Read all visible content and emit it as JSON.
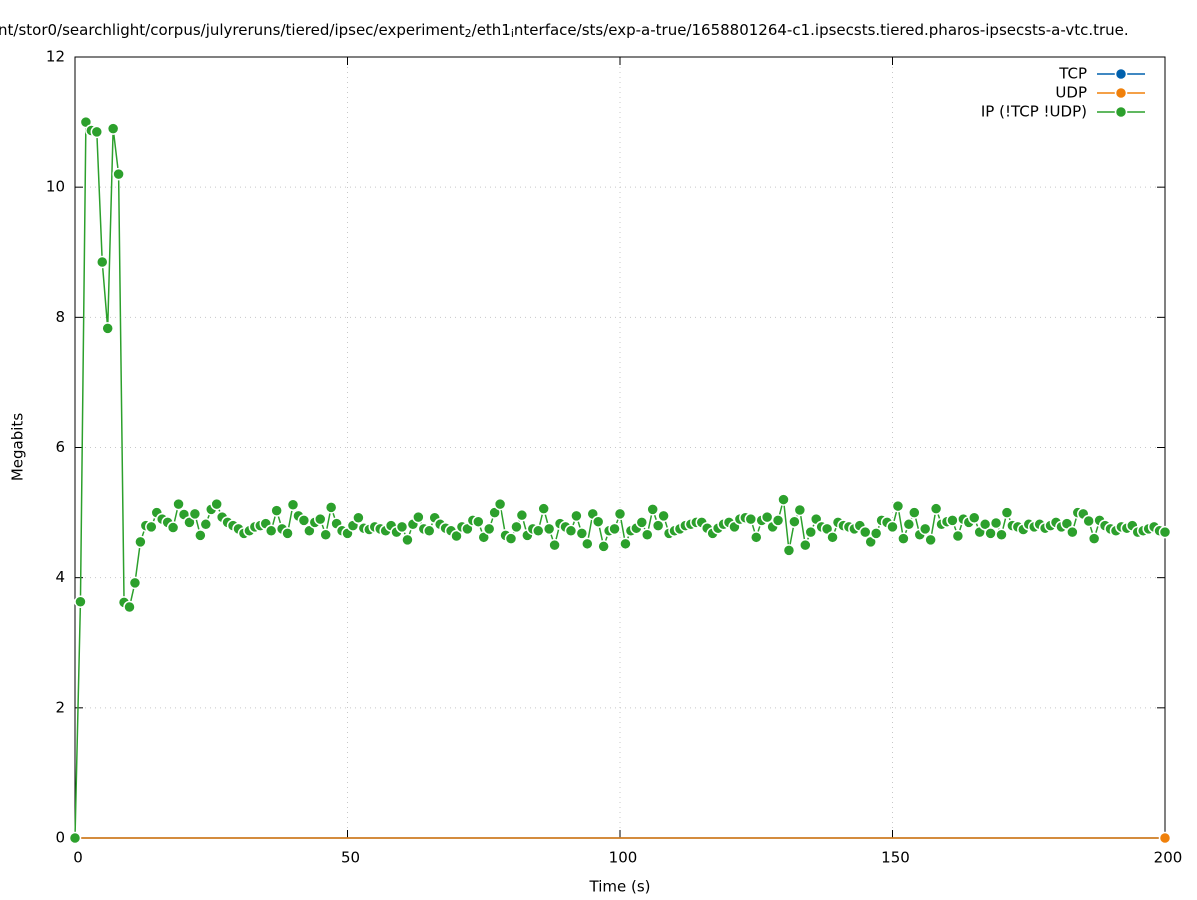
{
  "chart_data": {
    "type": "line",
    "title": [
      "nt/stor0/searchlight/corpus/julyreruns/tiered/ipsec/experiment",
      "2",
      "/eth1",
      "i",
      "nterface/sts/exp-a-true/1658801264-c1.ipsecsts.tiered.pharos-ipsecsts-a-vtc.true."
    ],
    "xlabel": "Time (s)",
    "ylabel": "Megabits",
    "xlim": [
      0,
      200
    ],
    "xticks": [
      0,
      50,
      100,
      150,
      200
    ],
    "ylim": [
      0,
      12
    ],
    "yticks": [
      0,
      2,
      4,
      6,
      8,
      10,
      12
    ],
    "grid": true,
    "legend": "top-right",
    "x": [
      0,
      1,
      2,
      3,
      4,
      5,
      6,
      7,
      8,
      9,
      10,
      11,
      12,
      13,
      14,
      15,
      16,
      17,
      18,
      19,
      20,
      21,
      22,
      23,
      24,
      25,
      26,
      27,
      28,
      29,
      30,
      31,
      32,
      33,
      34,
      35,
      36,
      37,
      38,
      39,
      40,
      41,
      42,
      43,
      44,
      45,
      46,
      47,
      48,
      49,
      50,
      51,
      52,
      53,
      54,
      55,
      56,
      57,
      58,
      59,
      60,
      61,
      62,
      63,
      64,
      65,
      66,
      67,
      68,
      69,
      70,
      71,
      72,
      73,
      74,
      75,
      76,
      77,
      78,
      79,
      80,
      81,
      82,
      83,
      84,
      85,
      86,
      87,
      88,
      89,
      90,
      91,
      92,
      93,
      94,
      95,
      96,
      97,
      98,
      99,
      100,
      101,
      102,
      103,
      104,
      105,
      106,
      107,
      108,
      109,
      110,
      111,
      112,
      113,
      114,
      115,
      116,
      117,
      118,
      119,
      120,
      121,
      122,
      123,
      124,
      125,
      126,
      127,
      128,
      129,
      130,
      131,
      132,
      133,
      134,
      135,
      136,
      137,
      138,
      139,
      140,
      141,
      142,
      143,
      144,
      145,
      146,
      147,
      148,
      149,
      150,
      151,
      152,
      153,
      154,
      155,
      156,
      157,
      158,
      159,
      160,
      161,
      162,
      163,
      164,
      165,
      166,
      167,
      168,
      169,
      170,
      171,
      172,
      173,
      174,
      175,
      176,
      177,
      178,
      179,
      180,
      181,
      182,
      183,
      184,
      185,
      186,
      187,
      188,
      189,
      190,
      191,
      192,
      193,
      194,
      195,
      196,
      197,
      198,
      199,
      200
    ],
    "series": [
      {
        "name": "TCP",
        "color": "#0060ad",
        "values": [
          0,
          0,
          0,
          0,
          0,
          0,
          0,
          0,
          0,
          0,
          0,
          0,
          0,
          0,
          0,
          0,
          0,
          0,
          0,
          0,
          0,
          0,
          0,
          0,
          0,
          0,
          0,
          0,
          0,
          0,
          0,
          0,
          0,
          0,
          0,
          0,
          0,
          0,
          0,
          0,
          0,
          0,
          0,
          0,
          0,
          0,
          0,
          0,
          0,
          0,
          0,
          0,
          0,
          0,
          0,
          0,
          0,
          0,
          0,
          0,
          0,
          0,
          0,
          0,
          0,
          0,
          0,
          0,
          0,
          0,
          0,
          0,
          0,
          0,
          0,
          0,
          0,
          0,
          0,
          0,
          0,
          0,
          0,
          0,
          0,
          0,
          0,
          0,
          0,
          0,
          0,
          0,
          0,
          0,
          0,
          0,
          0,
          0,
          0,
          0,
          0,
          0,
          0,
          0,
          0,
          0,
          0,
          0,
          0,
          0,
          0,
          0,
          0,
          0,
          0,
          0,
          0,
          0,
          0,
          0,
          0,
          0,
          0,
          0,
          0,
          0,
          0,
          0,
          0,
          0,
          0,
          0,
          0,
          0,
          0,
          0,
          0,
          0,
          0,
          0,
          0,
          0,
          0,
          0,
          0,
          0,
          0,
          0,
          0,
          0,
          0,
          0,
          0,
          0,
          0,
          0,
          0,
          0,
          0,
          0,
          0,
          0,
          0,
          0,
          0,
          0,
          0,
          0,
          0,
          0,
          0,
          0,
          0,
          0,
          0,
          0,
          0,
          0,
          0,
          0,
          0,
          0,
          0,
          0,
          0,
          0,
          0,
          0,
          0,
          0,
          0,
          0,
          0,
          0,
          0,
          0,
          0,
          0,
          0,
          0,
          0
        ]
      },
      {
        "name": "UDP",
        "color": "#f0800a",
        "values": [
          0,
          0,
          0,
          0,
          0,
          0,
          0,
          0,
          0,
          0,
          0,
          0,
          0,
          0,
          0,
          0,
          0,
          0,
          0,
          0,
          0,
          0,
          0,
          0,
          0,
          0,
          0,
          0,
          0,
          0,
          0,
          0,
          0,
          0,
          0,
          0,
          0,
          0,
          0,
          0,
          0,
          0,
          0,
          0,
          0,
          0,
          0,
          0,
          0,
          0,
          0,
          0,
          0,
          0,
          0,
          0,
          0,
          0,
          0,
          0,
          0,
          0,
          0,
          0,
          0,
          0,
          0,
          0,
          0,
          0,
          0,
          0,
          0,
          0,
          0,
          0,
          0,
          0,
          0,
          0,
          0,
          0,
          0,
          0,
          0,
          0,
          0,
          0,
          0,
          0,
          0,
          0,
          0,
          0,
          0,
          0,
          0,
          0,
          0,
          0,
          0,
          0,
          0,
          0,
          0,
          0,
          0,
          0,
          0,
          0,
          0,
          0,
          0,
          0,
          0,
          0,
          0,
          0,
          0,
          0,
          0,
          0,
          0,
          0,
          0,
          0,
          0,
          0,
          0,
          0,
          0,
          0,
          0,
          0,
          0,
          0,
          0,
          0,
          0,
          0,
          0,
          0,
          0,
          0,
          0,
          0,
          0,
          0,
          0,
          0,
          0,
          0,
          0,
          0,
          0,
          0,
          0,
          0,
          0,
          0,
          0,
          0,
          0,
          0,
          0,
          0,
          0,
          0,
          0,
          0,
          0,
          0,
          0,
          0,
          0,
          0,
          0,
          0,
          0,
          0,
          0,
          0,
          0,
          0,
          0,
          0,
          0,
          0,
          0,
          0,
          0,
          0,
          0,
          0,
          0,
          0,
          0,
          0,
          0,
          0,
          0
        ]
      },
      {
        "name": "IP (!TCP  !UDP)",
        "color": "#2ca02c",
        "values": [
          0,
          3.63,
          11.0,
          10.87,
          10.85,
          8.85,
          7.83,
          10.9,
          10.2,
          3.62,
          3.55,
          3.92,
          4.55,
          4.8,
          4.78,
          5.0,
          4.9,
          4.85,
          4.77,
          5.13,
          4.97,
          4.85,
          4.98,
          4.65,
          4.82,
          5.05,
          5.13,
          4.93,
          4.85,
          4.8,
          4.75,
          4.68,
          4.72,
          4.78,
          4.8,
          4.83,
          4.72,
          5.03,
          4.75,
          4.68,
          5.12,
          4.95,
          4.88,
          4.72,
          4.85,
          4.9,
          4.66,
          5.08,
          4.83,
          4.72,
          4.68,
          4.8,
          4.92,
          4.76,
          4.74,
          4.78,
          4.75,
          4.72,
          4.8,
          4.7,
          4.78,
          4.58,
          4.82,
          4.93,
          4.75,
          4.72,
          4.92,
          4.82,
          4.76,
          4.72,
          4.64,
          4.78,
          4.75,
          4.88,
          4.86,
          4.62,
          4.75,
          5.0,
          5.13,
          4.65,
          4.6,
          4.78,
          4.96,
          4.65,
          4.75,
          4.72,
          5.06,
          4.75,
          4.5,
          4.83,
          4.78,
          4.72,
          4.95,
          4.68,
          4.52,
          4.98,
          4.86,
          4.48,
          4.72,
          4.75,
          4.98,
          4.52,
          4.72,
          4.76,
          4.85,
          4.66,
          5.05,
          4.8,
          4.95,
          4.68,
          4.72,
          4.75,
          4.8,
          4.82,
          4.85,
          4.85,
          4.76,
          4.68,
          4.76,
          4.82,
          4.85,
          4.78,
          4.9,
          4.92,
          4.9,
          4.62,
          4.88,
          4.93,
          4.78,
          4.88,
          5.2,
          4.42,
          4.86,
          5.04,
          4.5,
          4.7,
          4.9,
          4.78,
          4.75,
          4.62,
          4.85,
          4.8,
          4.78,
          4.75,
          4.8,
          4.7,
          4.55,
          4.68,
          4.88,
          4.85,
          4.78,
          5.1,
          4.6,
          4.82,
          5.0,
          4.66,
          4.75,
          4.58,
          5.06,
          4.82,
          4.86,
          4.88,
          4.64,
          4.9,
          4.85,
          4.92,
          4.7,
          4.82,
          4.68,
          4.84,
          4.66,
          5.0,
          4.8,
          4.78,
          4.74,
          4.82,
          4.78,
          4.82,
          4.76,
          4.8,
          4.85,
          4.78,
          4.83,
          4.7,
          5.0,
          4.98,
          4.87,
          4.6,
          4.88,
          4.8,
          4.75,
          4.72,
          4.78,
          4.76,
          4.8,
          4.7,
          4.72,
          4.75,
          4.78,
          4.72,
          4.7
        ]
      }
    ]
  }
}
